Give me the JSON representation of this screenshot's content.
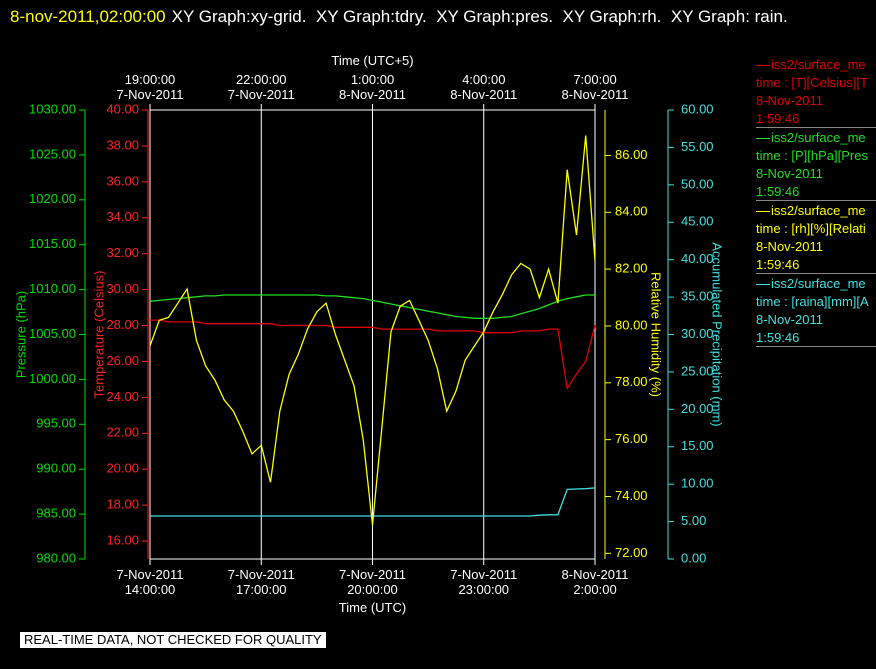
{
  "chart_data": {
    "type": "line",
    "title_time": "8-nov-2011,02:00:00",
    "title": "XY Graph:xy-grid.  XY Graph:tdry.  XY Graph:pres.  XY Graph:rh.  XY Graph: rain.",
    "xtitle": "Time (UTC)",
    "x2title": "Time (UTC+5)",
    "note": "REAL-TIME DATA, NOT CHECKED FOR QUALITY",
    "grid": true,
    "xlim": [
      "2011-11-07T14:00",
      "2011-11-08T02:00"
    ],
    "xticks": [
      {
        "value": "2011-11-07T14:00",
        "label": "7-Nov-2011\n14:00:00"
      },
      {
        "value": "2011-11-07T17:00",
        "label": "7-Nov-2011\n17:00:00"
      },
      {
        "value": "2011-11-07T20:00",
        "label": "7-Nov-2011\n20:00:00"
      },
      {
        "value": "2011-11-07T23:00",
        "label": "7-Nov-2011\n23:00:00"
      },
      {
        "value": "2011-11-08T02:00",
        "label": "8-Nov-2011\n2:00:00"
      }
    ],
    "x2ticks": [
      {
        "value": "2011-11-07T14:00",
        "label": "19:00:00\n7-Nov-2011"
      },
      {
        "value": "2011-11-07T17:00",
        "label": "22:00:00\n7-Nov-2011"
      },
      {
        "value": "2011-11-07T20:00",
        "label": "1:00:00\n8-Nov-2011"
      },
      {
        "value": "2011-11-07T23:00",
        "label": "4:00:00\n8-Nov-2011"
      },
      {
        "value": "2011-11-08T02:00",
        "label": "7:00:00\n8-Nov-2011"
      }
    ],
    "x": [
      "2011-11-07T14:00",
      "2011-11-07T14:15",
      "2011-11-07T14:30",
      "2011-11-07T14:45",
      "2011-11-07T15:00",
      "2011-11-07T15:15",
      "2011-11-07T15:30",
      "2011-11-07T15:45",
      "2011-11-07T16:00",
      "2011-11-07T16:15",
      "2011-11-07T16:30",
      "2011-11-07T16:45",
      "2011-11-07T17:00",
      "2011-11-07T17:15",
      "2011-11-07T17:30",
      "2011-11-07T17:45",
      "2011-11-07T18:00",
      "2011-11-07T18:15",
      "2011-11-07T18:30",
      "2011-11-07T18:45",
      "2011-11-07T19:00",
      "2011-11-07T19:15",
      "2011-11-07T19:30",
      "2011-11-07T19:45",
      "2011-11-07T20:00",
      "2011-11-07T20:15",
      "2011-11-07T20:30",
      "2011-11-07T20:45",
      "2011-11-07T21:00",
      "2011-11-07T21:15",
      "2011-11-07T21:30",
      "2011-11-07T21:45",
      "2011-11-07T22:00",
      "2011-11-07T22:15",
      "2011-11-07T22:30",
      "2011-11-07T22:45",
      "2011-11-07T23:00",
      "2011-11-07T23:15",
      "2011-11-07T23:30",
      "2011-11-07T23:45",
      "2011-11-08T00:00",
      "2011-11-08T00:15",
      "2011-11-08T00:30",
      "2011-11-08T00:45",
      "2011-11-08T01:00",
      "2011-11-08T01:15",
      "2011-11-08T01:30",
      "2011-11-08T01:45",
      "2011-11-08T02:00"
    ],
    "y_axes": [
      {
        "title": "Temperature (Celsius)",
        "color": "#ff2020",
        "ylim": [
          15,
          40
        ],
        "yticks": [
          {
            "value": 16,
            "label": "16.00"
          },
          {
            "value": 18,
            "label": "18.00"
          },
          {
            "value": 20,
            "label": "20.00"
          },
          {
            "value": 22,
            "label": "22.00"
          },
          {
            "value": 24,
            "label": "24.00"
          },
          {
            "value": 26,
            "label": "26.00"
          },
          {
            "value": 28,
            "label": "28.00"
          },
          {
            "value": 30,
            "label": "30.00"
          },
          {
            "value": 32,
            "label": "32.00"
          },
          {
            "value": 34,
            "label": "34.00"
          },
          {
            "value": 36,
            "label": "36.00"
          },
          {
            "value": 38,
            "label": "38.00"
          },
          {
            "value": 40,
            "label": "40.00"
          }
        ],
        "series": {
          "name": "iss2/surface_me",
          "variable": "time : [T][Celsius][T",
          "date": "8-Nov-2011",
          "time": "1:59:46",
          "color": "#e00000",
          "values": [
            28.3,
            28.3,
            28.2,
            28.2,
            28.2,
            28.2,
            28.1,
            28.1,
            28.1,
            28.1,
            28.1,
            28.1,
            28.1,
            28.1,
            28.0,
            28.0,
            28.0,
            28.0,
            28.0,
            28.0,
            27.9,
            27.9,
            27.9,
            27.9,
            27.9,
            27.8,
            27.8,
            27.8,
            27.8,
            27.8,
            27.8,
            27.7,
            27.7,
            27.7,
            27.7,
            27.7,
            27.6,
            27.6,
            27.6,
            27.6,
            27.7,
            27.7,
            27.7,
            27.8,
            27.8,
            24.5,
            25.3,
            26.0,
            28.0
          ]
        }
      },
      {
        "title": "Pressure (hPa)",
        "color": "#00dd00",
        "ylim": [
          980,
          1030
        ],
        "yticks": [
          {
            "value": 980,
            "label": "980.00"
          },
          {
            "value": 985,
            "label": "985.00"
          },
          {
            "value": 990,
            "label": "990.00"
          },
          {
            "value": 995,
            "label": "995.00"
          },
          {
            "value": 1000,
            "label": "1000.00"
          },
          {
            "value": 1005,
            "label": "1005.00"
          },
          {
            "value": 1010,
            "label": "1010.00"
          },
          {
            "value": 1015,
            "label": "1015.00"
          },
          {
            "value": 1020,
            "label": "1020.00"
          },
          {
            "value": 1025,
            "label": "1025.00"
          },
          {
            "value": 1030,
            "label": "1030.00"
          }
        ],
        "series": {
          "name": "iss2/surface_me",
          "variable": "time : [P][hPa][Pres",
          "date": "8-Nov-2011",
          "time": "1:59:46",
          "color": "#22dd22",
          "values": [
            1008.7,
            1008.8,
            1008.9,
            1009.0,
            1009.1,
            1009.2,
            1009.3,
            1009.3,
            1009.4,
            1009.4,
            1009.4,
            1009.4,
            1009.4,
            1009.4,
            1009.4,
            1009.4,
            1009.4,
            1009.4,
            1009.4,
            1009.3,
            1009.3,
            1009.2,
            1009.1,
            1009.0,
            1008.8,
            1008.6,
            1008.4,
            1008.2,
            1008.0,
            1007.8,
            1007.6,
            1007.4,
            1007.2,
            1007.0,
            1006.9,
            1006.8,
            1006.8,
            1006.8,
            1006.9,
            1007.0,
            1007.3,
            1007.6,
            1007.9,
            1008.3,
            1008.7,
            1009.0,
            1009.2,
            1009.4,
            1009.4
          ]
        }
      },
      {
        "title": "Relative Humidity (%)",
        "color": "#ffff00",
        "ylim": [
          71.8,
          87.6
        ],
        "yticks": [
          {
            "value": 72,
            "label": "72.00"
          },
          {
            "value": 74,
            "label": "74.00"
          },
          {
            "value": 76,
            "label": "76.00"
          },
          {
            "value": 78,
            "label": "78.00"
          },
          {
            "value": 80,
            "label": "80.00"
          },
          {
            "value": 82,
            "label": "82.00"
          },
          {
            "value": 84,
            "label": "84.00"
          },
          {
            "value": 86,
            "label": "86.00"
          }
        ],
        "series": {
          "name": "iss2/surface_me",
          "variable": "time : [rh][%][Relati",
          "date": "8-Nov-2011",
          "time": "1:59:46",
          "color": "#ffff00",
          "values": [
            79.3,
            80.2,
            80.3,
            80.8,
            81.3,
            79.5,
            78.6,
            78.1,
            77.4,
            77.0,
            76.3,
            75.5,
            75.8,
            74.5,
            77.0,
            78.3,
            79.0,
            79.9,
            80.5,
            80.8,
            79.7,
            78.8,
            77.9,
            76.0,
            73.0,
            76.4,
            79.8,
            80.7,
            80.9,
            80.2,
            79.5,
            78.5,
            77.0,
            77.7,
            78.8,
            79.3,
            79.8,
            80.5,
            81.1,
            81.8,
            82.2,
            82.0,
            81.0,
            82.0,
            80.8,
            85.5,
            83.2,
            86.7,
            82.3
          ]
        }
      },
      {
        "title": "Accumulated Precipitation (mm)",
        "color": "#40e0e0",
        "ylim": [
          0,
          60
        ],
        "yticks": [
          {
            "value": 0,
            "label": "0.00"
          },
          {
            "value": 5,
            "label": "5.00"
          },
          {
            "value": 10,
            "label": "10.00"
          },
          {
            "value": 15,
            "label": "15.00"
          },
          {
            "value": 20,
            "label": "20.00"
          },
          {
            "value": 25,
            "label": "25.00"
          },
          {
            "value": 30,
            "label": "30.00"
          },
          {
            "value": 35,
            "label": "35.00"
          },
          {
            "value": 40,
            "label": "40.00"
          },
          {
            "value": 45,
            "label": "45.00"
          },
          {
            "value": 50,
            "label": "50.00"
          },
          {
            "value": 55,
            "label": "55.00"
          },
          {
            "value": 60,
            "label": "60.00"
          }
        ],
        "series": {
          "name": "iss2/surface_me",
          "variable": "time : [raina][mm][A",
          "date": "8-Nov-2011",
          "time": "1:59:46",
          "color": "#40e0e0",
          "values": [
            5.75,
            5.75,
            5.75,
            5.75,
            5.75,
            5.75,
            5.75,
            5.75,
            5.75,
            5.75,
            5.75,
            5.75,
            5.75,
            5.75,
            5.75,
            5.75,
            5.75,
            5.75,
            5.75,
            5.75,
            5.75,
            5.75,
            5.75,
            5.75,
            5.75,
            5.75,
            5.75,
            5.75,
            5.75,
            5.75,
            5.75,
            5.75,
            5.75,
            5.75,
            5.75,
            5.75,
            5.75,
            5.75,
            5.75,
            5.75,
            5.75,
            5.75,
            5.85,
            5.9,
            5.9,
            9.3,
            9.35,
            9.4,
            9.5
          ]
        }
      }
    ]
  }
}
